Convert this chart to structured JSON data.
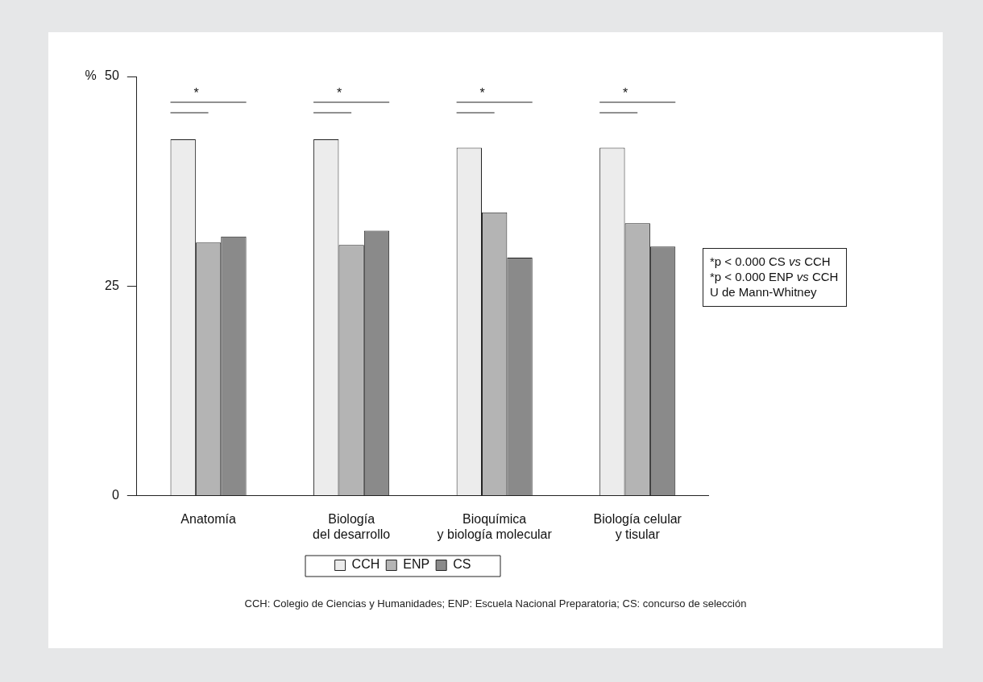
{
  "chart_data": {
    "type": "bar",
    "ylabel": "%",
    "categories": [
      "Anatomía",
      "Biología\ndel desarrollo",
      "Bioquímica\ny biología molecular",
      "Biología celular\ny tisular"
    ],
    "series": [
      {
        "name": "CCH",
        "color": "#ececec",
        "values": [
          42.5,
          42.5,
          41.5,
          41.5
        ]
      },
      {
        "name": "ENP",
        "color": "#b4b4b4",
        "values": [
          30.2,
          29.9,
          33.8,
          32.5
        ]
      },
      {
        "name": "CS",
        "color": "#8a8a8a",
        "values": [
          30.9,
          31.6,
          28.4,
          29.7
        ]
      }
    ],
    "ylim": [
      0,
      50
    ],
    "yticks": [
      0,
      25,
      50
    ],
    "grid": false,
    "legend": "bottom",
    "annotations": [
      "*",
      "*",
      "*",
      "*",
      "*p < 0.000 CS vs CCH\n*p < 0.000 ENP vs CCH\nU de Mann-Whitney",
      "CCH: Colegio de Ciencias y Humanidades; ENP: Escuela Nacional Preparatoria; CS: concurso de selección"
    ]
  }
}
